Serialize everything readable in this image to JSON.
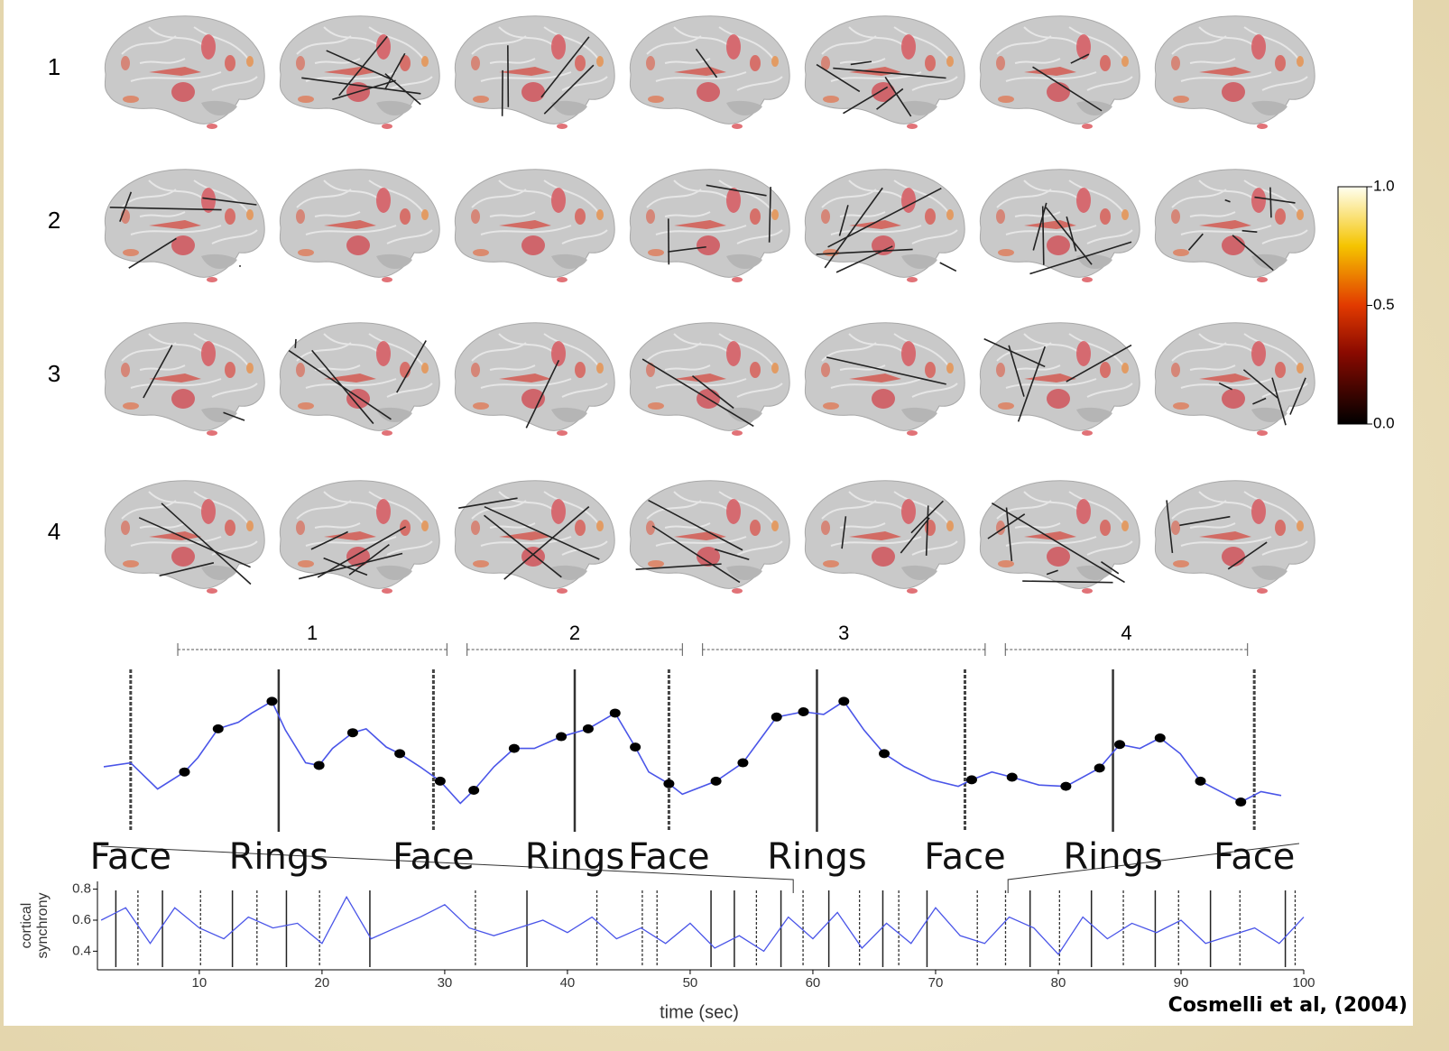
{
  "brain_rows": [
    "1",
    "2",
    "3",
    "4"
  ],
  "colorbar": {
    "lim": [
      0,
      1
    ],
    "ticks": [
      {
        "value": 1,
        "label": "1.0"
      },
      {
        "value": 0.5,
        "label": "0.5"
      },
      {
        "value": 0,
        "label": "0.0"
      }
    ]
  },
  "chart_data": [
    {
      "type": "line",
      "xlim": [
        58.4,
        75.9
      ],
      "ylim": [
        0,
        1
      ],
      "x": [
        58.4,
        58.8,
        59.2,
        59.6,
        59.8,
        60.1,
        60.4,
        60.6,
        60.9,
        61.1,
        61.4,
        61.6,
        61.8,
        62.1,
        62.3,
        62.6,
        62.8,
        63.1,
        63.4,
        63.7,
        63.9,
        64.2,
        64.5,
        64.8,
        65.2,
        65.6,
        66.0,
        66.3,
        66.5,
        66.8,
        67.0,
        67.5,
        67.9,
        68.2,
        68.4,
        68.8,
        69.1,
        69.4,
        69.7,
        70.0,
        70.3,
        70.7,
        71.1,
        71.3,
        71.6,
        71.9,
        72.3,
        72.7,
        73.2,
        73.5,
        73.8,
        74.1,
        74.4,
        74.7,
        75.0,
        75.3,
        75.6,
        75.9
      ],
      "series": [
        {
          "color": "#4a55e8",
          "values": [
            0.38,
            0.41,
            0.21,
            0.34,
            0.45,
            0.67,
            0.72,
            0.79,
            0.88,
            0.66,
            0.41,
            0.39,
            0.52,
            0.64,
            0.67,
            0.53,
            0.48,
            0.38,
            0.27,
            0.1,
            0.2,
            0.38,
            0.52,
            0.52,
            0.61,
            0.67,
            0.79,
            0.53,
            0.34,
            0.25,
            0.17,
            0.27,
            0.41,
            0.62,
            0.76,
            0.8,
            0.78,
            0.88,
            0.66,
            0.48,
            0.38,
            0.28,
            0.23,
            0.28,
            0.34,
            0.3,
            0.24,
            0.23,
            0.37,
            0.55,
            0.52,
            0.6,
            0.48,
            0.27,
            0.19,
            0.11,
            0.19,
            0.16
          ]
        }
      ],
      "dots": {
        "x": [
          59.6,
          60.1,
          60.9,
          61.6,
          62.1,
          62.8,
          63.4,
          63.9,
          64.5,
          65.2,
          65.6,
          66.0,
          66.3,
          66.8,
          67.5,
          67.9,
          68.4,
          68.8,
          69.4,
          70.0,
          71.3,
          71.9,
          72.7,
          73.2,
          73.5,
          74.1,
          74.7,
          75.3
        ],
        "values": [
          0.34,
          0.67,
          0.88,
          0.39,
          0.64,
          0.48,
          0.27,
          0.2,
          0.52,
          0.61,
          0.67,
          0.79,
          0.53,
          0.25,
          0.27,
          0.41,
          0.76,
          0.8,
          0.88,
          0.48,
          0.28,
          0.3,
          0.23,
          0.37,
          0.55,
          0.6,
          0.27,
          0.11
        ]
      },
      "events": {
        "x": [
          58.8,
          61.0,
          63.3,
          65.4,
          66.8,
          69.0,
          71.2,
          73.4,
          75.5
        ],
        "labels": [
          "Face",
          "Rings",
          "Face",
          "Rings",
          "Face",
          "Rings",
          "Face",
          "Rings",
          "Face"
        ],
        "dashed": [
          true,
          false,
          true,
          false,
          true,
          false,
          true,
          false,
          true
        ]
      },
      "segments": {
        "labels": [
          "1",
          "2",
          "3",
          "4"
        ],
        "start": [
          59.5,
          63.8,
          67.3,
          71.8
        ],
        "end": [
          63.5,
          67.0,
          71.5,
          75.4
        ]
      }
    },
    {
      "type": "line",
      "xlim": [
        1.7,
        100
      ],
      "ylim": [
        0.28,
        0.85
      ],
      "xticks": [
        10,
        20,
        30,
        40,
        50,
        60,
        70,
        80,
        90,
        100
      ],
      "yticks": [
        {
          "value": 0.4,
          "label": "0.4"
        },
        {
          "value": 0.6,
          "label": "0.6"
        },
        {
          "value": 0.8,
          "label": "0.8"
        }
      ],
      "xlabel": "time (sec)",
      "ylabel": [
        "cortical",
        "synchrony"
      ],
      "x": [
        2,
        4,
        6,
        8,
        10,
        12,
        14,
        16,
        18,
        20,
        22,
        24,
        26,
        28,
        30,
        32,
        34,
        36,
        38,
        40,
        42,
        44,
        46,
        48,
        50,
        52,
        54,
        56,
        58,
        60,
        62,
        64,
        66,
        68,
        70,
        72,
        74,
        76,
        78,
        80,
        82,
        84,
        86,
        88,
        90,
        92,
        94,
        96,
        98,
        100
      ],
      "series": [
        {
          "color": "#4a55e8",
          "values": [
            0.6,
            0.68,
            0.45,
            0.68,
            0.55,
            0.48,
            0.62,
            0.55,
            0.58,
            0.45,
            0.75,
            0.48,
            0.55,
            0.62,
            0.7,
            0.55,
            0.5,
            0.55,
            0.6,
            0.52,
            0.62,
            0.48,
            0.55,
            0.45,
            0.58,
            0.42,
            0.5,
            0.4,
            0.62,
            0.48,
            0.65,
            0.42,
            0.58,
            0.45,
            0.68,
            0.5,
            0.45,
            0.62,
            0.55,
            0.38,
            0.62,
            0.48,
            0.58,
            0.52,
            0.6,
            0.45,
            0.5,
            0.55,
            0.45,
            0.62
          ]
        }
      ],
      "solid_x": [
        3.2,
        7.0,
        12.7,
        17.1,
        23.9,
        36.7,
        51.7,
        53.6,
        57.4,
        61.3,
        65.7,
        69.3,
        77.7,
        82.7,
        87.9,
        92.4,
        98.5
      ],
      "dashed_x": [
        5.0,
        10.1,
        14.7,
        19.8,
        32.5,
        42.4,
        46.1,
        47.3,
        55.4,
        59.2,
        63.8,
        67.0,
        73.4,
        75.7,
        80.1,
        85.3,
        89.8,
        94.8,
        99.3
      ]
    }
  ],
  "credit": "Cosmelli et al, (2004)"
}
